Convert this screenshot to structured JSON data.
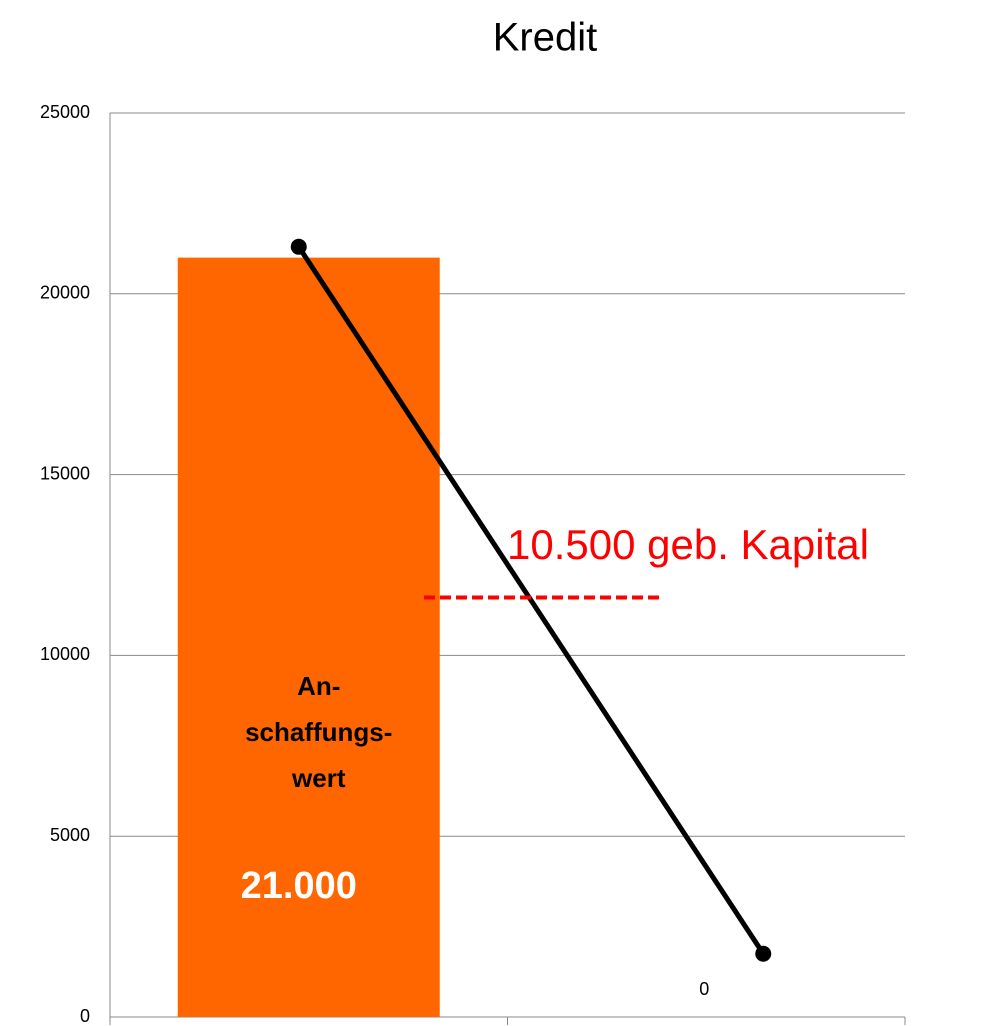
{
  "chart_data": {
    "type": "bar",
    "title": "Kredit",
    "categories": [
      null,
      null
    ],
    "series": [
      {
        "type": "bar",
        "color": "#ff6600",
        "values": [
          21000,
          0
        ],
        "value_labels": [
          "21.000",
          "0"
        ]
      },
      {
        "type": "line",
        "color": "#000000",
        "values": [
          21300,
          1750
        ]
      }
    ],
    "bar_text": [
      "An-",
      "schaffungs-",
      "wert"
    ],
    "annotation": {
      "text": "10.500 geb. Kapital",
      "color": "#ff0000"
    },
    "reference_line": {
      "value": 11600,
      "color": "#ff0000"
    },
    "ylim": [
      0,
      25000
    ],
    "yticks": [
      0,
      5000,
      10000,
      15000,
      20000,
      25000
    ],
    "grid": true
  }
}
